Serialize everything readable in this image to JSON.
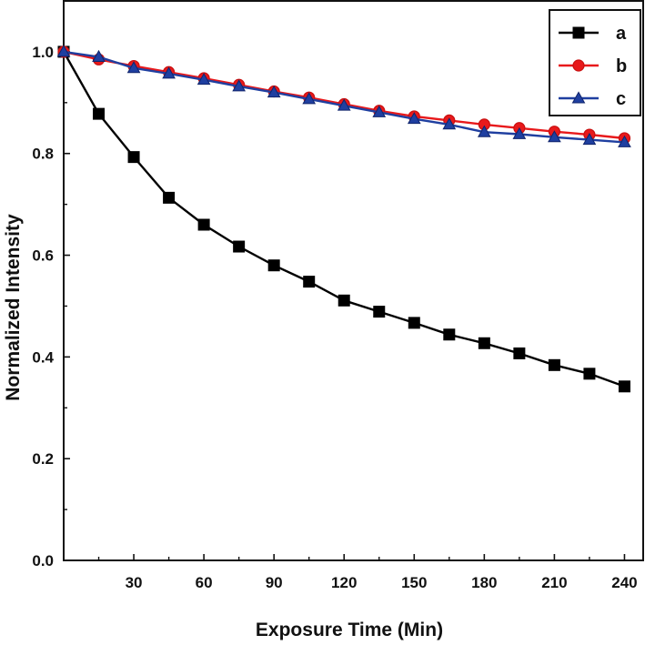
{
  "chart_data": {
    "type": "line",
    "xlabel": "Exposure Time (Min)",
    "ylabel": "Normalized Intensity",
    "xlim": [
      0,
      248
    ],
    "ylim": [
      0,
      1.1
    ],
    "xticks": [
      30,
      60,
      90,
      120,
      150,
      180,
      210,
      240
    ],
    "yticks": [
      0.0,
      0.2,
      0.4,
      0.6,
      0.8,
      1.0
    ],
    "ytick_labels": [
      "0.0",
      "0.2",
      "0.4",
      "0.6",
      "0.8",
      "1.0"
    ],
    "legend_position": "top-right",
    "x": [
      0,
      15,
      30,
      45,
      60,
      75,
      90,
      105,
      120,
      135,
      150,
      165,
      180,
      195,
      210,
      225,
      240
    ],
    "series": [
      {
        "name": "a",
        "color": "#000000",
        "marker": "square",
        "values": [
          1.0,
          0.878,
          0.793,
          0.713,
          0.66,
          0.617,
          0.58,
          0.548,
          0.511,
          0.489,
          0.467,
          0.444,
          0.427,
          0.407,
          0.384,
          0.367,
          0.342
        ]
      },
      {
        "name": "b",
        "color": "#e8191b",
        "marker": "circle",
        "values": [
          1.0,
          0.985,
          0.972,
          0.96,
          0.948,
          0.935,
          0.922,
          0.91,
          0.897,
          0.884,
          0.873,
          0.865,
          0.857,
          0.85,
          0.843,
          0.837,
          0.83
        ]
      },
      {
        "name": "c",
        "color": "#1f3fa0",
        "marker": "triangle",
        "values": [
          1.0,
          0.99,
          0.968,
          0.957,
          0.945,
          0.932,
          0.92,
          0.907,
          0.894,
          0.881,
          0.868,
          0.857,
          0.842,
          0.838,
          0.832,
          0.827,
          0.822
        ]
      }
    ]
  }
}
